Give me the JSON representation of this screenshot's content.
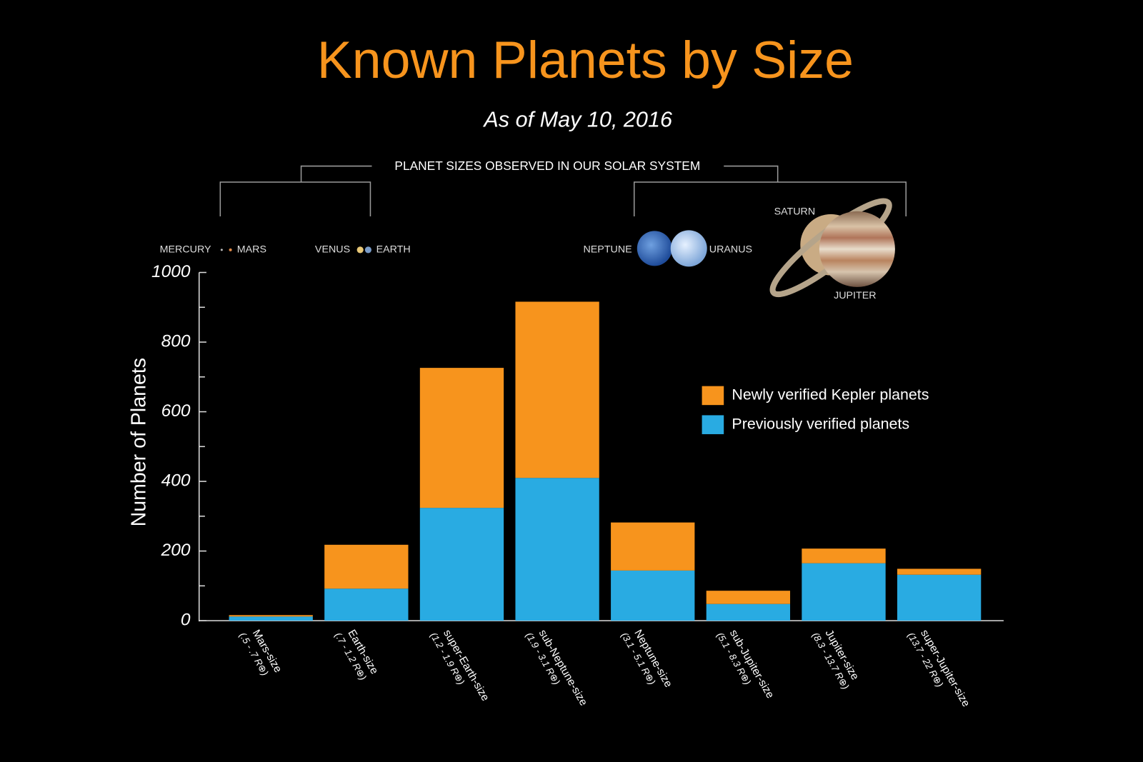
{
  "chart_data": {
    "type": "stacked_bar",
    "title": "Known Planets by Size",
    "subtitle": "As of May 10, 2016",
    "y_label": "Number of Planets",
    "categories": [
      "Mars-size",
      "Earth-size",
      "super-Earth-size",
      "sub-Neptune-size",
      "Neptune-size",
      "sub-Jupiter-size",
      "Jupiter-size",
      "super-Jupiter-size"
    ],
    "category_ranges": [
      "(.5 - .7 R⊕)",
      "(.7 - 1.2 R⊕)",
      "(1.2 - 1.9 R⊕)",
      "(1.9 - 3.1 R⊕)",
      "(3.1 - 5.1 R⊕)",
      "(5.1 - 8.3 R⊕)",
      "(8.3 - 13.7 R⊕)",
      "(13.7 - 22 R⊕)"
    ],
    "series": [
      {
        "name": "Previously verified planets",
        "color": "#29abe2",
        "values": [
          12,
          92,
          324,
          410,
          144,
          48,
          165,
          132
        ]
      },
      {
        "name": "Newly verified Kepler planets",
        "color": "#f7941d",
        "values": [
          4,
          126,
          402,
          506,
          138,
          38,
          42,
          17
        ]
      }
    ],
    "ylim": [
      0,
      1000
    ],
    "yticks": [
      0,
      200,
      400,
      600,
      800,
      1000
    ],
    "yminorticks": [
      100,
      300,
      500,
      700,
      900
    ],
    "legend": "right",
    "solar_system": {
      "heading": "PLANET SIZES OBSERVED IN OUR SOLAR SYSTEM",
      "planets": [
        "MERCURY",
        "MARS",
        "VENUS",
        "EARTH",
        "NEPTUNE",
        "URANUS",
        "SATURN",
        "JUPITER"
      ]
    }
  }
}
